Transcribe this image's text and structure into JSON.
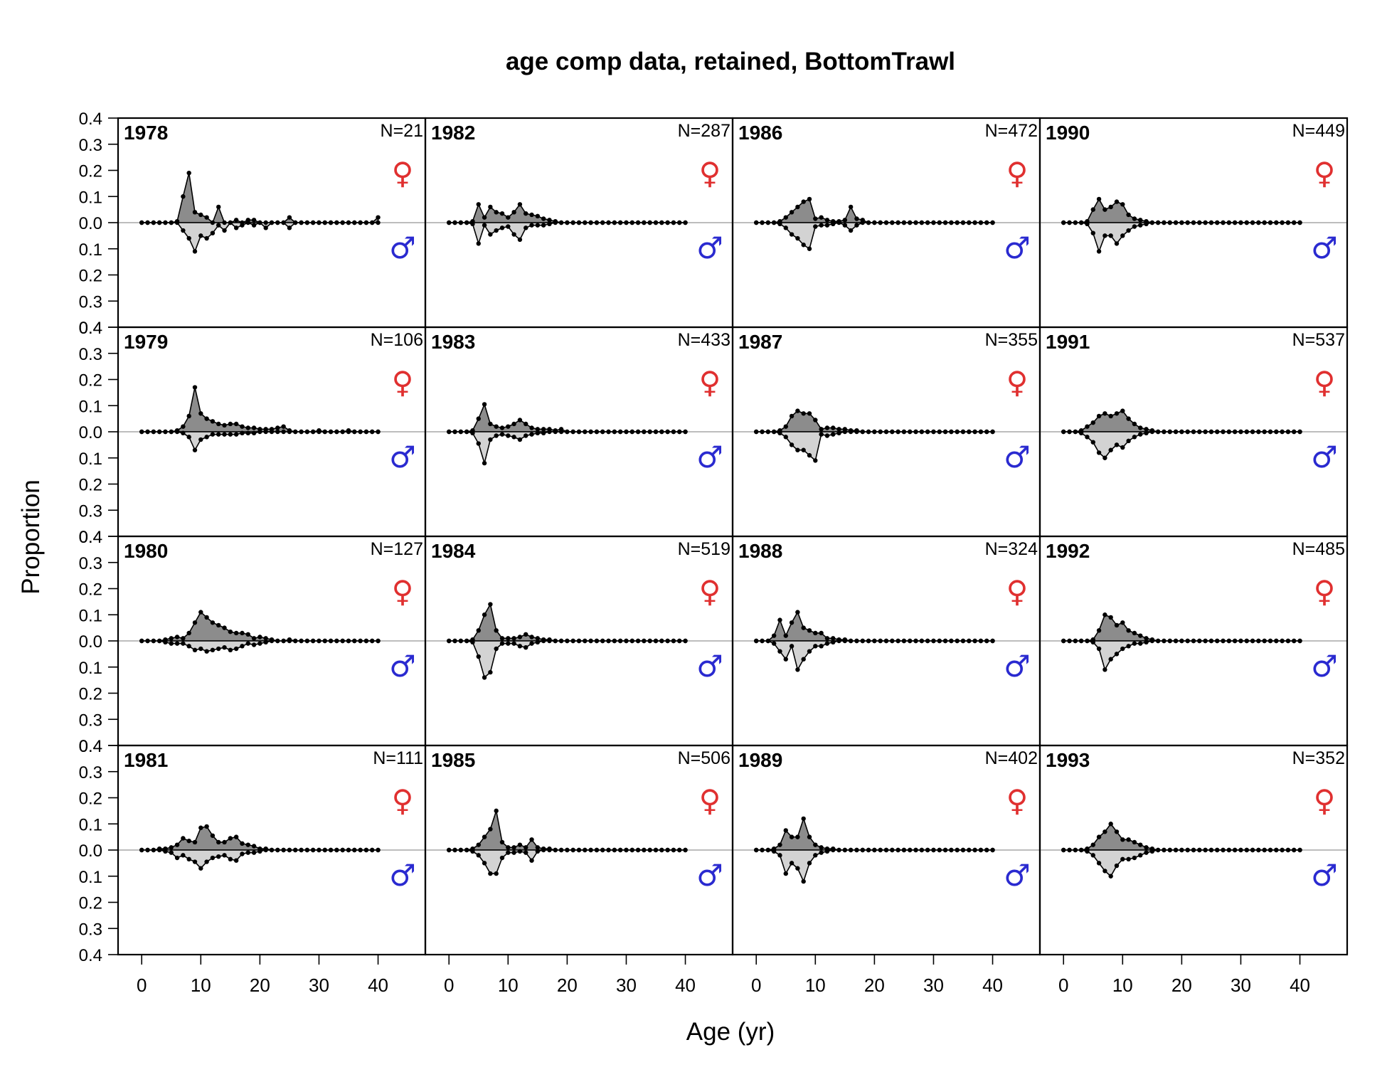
{
  "chart_data": {
    "type": "area",
    "title": "age comp data, retained, BottomTrawl",
    "xlabel": "Age (yr)",
    "ylabel": "Proportion",
    "xlim": [
      -4,
      48
    ],
    "ylim": [
      -0.4,
      0.4
    ],
    "x_ticks": [
      "0",
      "10",
      "20",
      "30",
      "40"
    ],
    "x_tick_values": [
      0,
      10,
      20,
      30,
      40
    ],
    "y_ticks": [
      "0.4",
      "0.3",
      "0.2",
      "0.1",
      "0.0",
      "0.1",
      "0.2",
      "0.3",
      "0.4"
    ],
    "y_tick_values": [
      0.4,
      0.3,
      0.2,
      0.1,
      0.0,
      -0.1,
      -0.2,
      -0.3,
      -0.4
    ],
    "female_symbol": "♀",
    "male_symbol": "♂",
    "colors": {
      "female_fill": "#8c8c8c",
      "male_fill": "#d3d3d3",
      "female_symbol": "#e03030",
      "male_symbol": "#2a2ad0",
      "zero_line": "#bdbdbd"
    },
    "grid": false,
    "ages": [
      0,
      40
    ],
    "panels": [
      {
        "year": "1978",
        "n": "N=21",
        "female": {
          "6": 0.005,
          "7": 0.1,
          "8": 0.19,
          "9": 0.04,
          "10": 0.03,
          "11": 0.02,
          "12": 0.0,
          "13": 0.06,
          "14": 0.0,
          "15": 0.0,
          "16": 0.01,
          "17": 0.0,
          "18": 0.01,
          "19": 0.01,
          "20": 0.0,
          "25": 0.02,
          "40": 0.02
        },
        "male": {
          "7": 0.03,
          "8": 0.06,
          "9": 0.11,
          "10": 0.05,
          "11": 0.06,
          "12": 0.04,
          "13": 0.01,
          "14": 0.03,
          "15": 0.0,
          "16": 0.02,
          "17": 0.01,
          "18": 0.0,
          "19": 0.01,
          "20": 0.0,
          "21": 0.02,
          "25": 0.02
        }
      },
      {
        "year": "1979",
        "n": "N=106",
        "female": {
          "6": 0.005,
          "7": 0.02,
          "8": 0.06,
          "9": 0.17,
          "10": 0.07,
          "11": 0.05,
          "12": 0.04,
          "13": 0.03,
          "14": 0.025,
          "15": 0.03,
          "16": 0.03,
          "17": 0.02,
          "18": 0.015,
          "19": 0.015,
          "20": 0.01,
          "21": 0.01,
          "22": 0.01,
          "23": 0.015,
          "24": 0.02,
          "25": 0.005,
          "30": 0.005,
          "35": 0.005
        },
        "male": {
          "7": 0.005,
          "8": 0.02,
          "9": 0.07,
          "10": 0.03,
          "11": 0.02,
          "12": 0.01,
          "13": 0.01,
          "14": 0.01,
          "15": 0.01,
          "16": 0.01,
          "17": 0.005,
          "18": 0.005,
          "19": 0.005
        }
      },
      {
        "year": "1980",
        "n": "N=127",
        "female": {
          "4": 0.005,
          "5": 0.01,
          "6": 0.015,
          "7": 0.01,
          "8": 0.03,
          "9": 0.07,
          "10": 0.11,
          "11": 0.09,
          "12": 0.07,
          "13": 0.06,
          "14": 0.05,
          "15": 0.035,
          "16": 0.03,
          "17": 0.03,
          "18": 0.025,
          "19": 0.01,
          "20": 0.015,
          "21": 0.01,
          "22": 0.005,
          "25": 0.005
        },
        "male": {
          "4": 0.005,
          "5": 0.01,
          "6": 0.01,
          "7": 0.01,
          "8": 0.02,
          "9": 0.035,
          "10": 0.03,
          "11": 0.04,
          "12": 0.035,
          "13": 0.03,
          "14": 0.025,
          "15": 0.035,
          "16": 0.03,
          "17": 0.02,
          "18": 0.01,
          "19": 0.015,
          "20": 0.01,
          "21": 0.005
        }
      },
      {
        "year": "1981",
        "n": "N=111",
        "female": {
          "3": 0.005,
          "4": 0.005,
          "5": 0.01,
          "6": 0.02,
          "7": 0.045,
          "8": 0.035,
          "9": 0.03,
          "10": 0.085,
          "11": 0.09,
          "12": 0.055,
          "13": 0.03,
          "14": 0.03,
          "15": 0.045,
          "16": 0.05,
          "17": 0.025,
          "18": 0.02,
          "19": 0.015,
          "20": 0.005,
          "21": 0.005
        },
        "male": {
          "4": 0.005,
          "5": 0.01,
          "6": 0.03,
          "7": 0.02,
          "8": 0.035,
          "9": 0.045,
          "10": 0.07,
          "11": 0.045,
          "12": 0.03,
          "13": 0.025,
          "14": 0.02,
          "15": 0.035,
          "16": 0.04,
          "17": 0.015,
          "18": 0.01,
          "19": 0.01,
          "20": 0.005
        }
      },
      {
        "year": "1982",
        "n": "N=287",
        "female": {
          "4": 0.005,
          "5": 0.07,
          "6": 0.02,
          "7": 0.06,
          "8": 0.04,
          "9": 0.035,
          "10": 0.02,
          "11": 0.04,
          "12": 0.07,
          "13": 0.035,
          "14": 0.03,
          "15": 0.025,
          "16": 0.015,
          "17": 0.01,
          "18": 0.005
        },
        "male": {
          "4": 0.005,
          "5": 0.08,
          "6": 0.01,
          "7": 0.045,
          "8": 0.03,
          "9": 0.02,
          "10": 0.015,
          "11": 0.045,
          "12": 0.065,
          "13": 0.02,
          "14": 0.01,
          "15": 0.01,
          "16": 0.01,
          "17": 0.005
        }
      },
      {
        "year": "1983",
        "n": "N=433",
        "female": {
          "4": 0.005,
          "5": 0.05,
          "6": 0.105,
          "7": 0.03,
          "8": 0.02,
          "9": 0.015,
          "10": 0.02,
          "11": 0.03,
          "12": 0.045,
          "13": 0.03,
          "14": 0.015,
          "15": 0.01,
          "16": 0.01,
          "17": 0.01,
          "18": 0.005,
          "19": 0.01
        },
        "male": {
          "4": 0.005,
          "5": 0.045,
          "6": 0.12,
          "7": 0.03,
          "8": 0.015,
          "9": 0.01,
          "10": 0.015,
          "11": 0.02,
          "12": 0.03,
          "13": 0.015,
          "14": 0.01,
          "15": 0.005,
          "16": 0.005
        }
      },
      {
        "year": "1984",
        "n": "N=519",
        "female": {
          "4": 0.005,
          "5": 0.04,
          "6": 0.1,
          "7": 0.14,
          "8": 0.04,
          "9": 0.01,
          "10": 0.01,
          "11": 0.01,
          "12": 0.015,
          "13": 0.025,
          "14": 0.015,
          "15": 0.01,
          "16": 0.005,
          "17": 0.005
        },
        "male": {
          "4": 0.005,
          "5": 0.06,
          "6": 0.14,
          "7": 0.12,
          "8": 0.03,
          "9": 0.01,
          "10": 0.01,
          "11": 0.01,
          "12": 0.02,
          "13": 0.025,
          "14": 0.01,
          "15": 0.005
        }
      },
      {
        "year": "1985",
        "n": "N=506",
        "female": {
          "4": 0.005,
          "5": 0.02,
          "6": 0.05,
          "7": 0.08,
          "8": 0.15,
          "9": 0.03,
          "10": 0.01,
          "11": 0.01,
          "12": 0.02,
          "13": 0.01,
          "14": 0.04,
          "15": 0.01,
          "16": 0.005,
          "17": 0.005
        },
        "male": {
          "4": 0.005,
          "5": 0.02,
          "6": 0.05,
          "7": 0.09,
          "8": 0.09,
          "9": 0.03,
          "10": 0.01,
          "11": 0.01,
          "12": 0.005,
          "13": 0.01,
          "14": 0.04,
          "15": 0.005
        }
      },
      {
        "year": "1986",
        "n": "N=472",
        "female": {
          "4": 0.005,
          "5": 0.02,
          "6": 0.04,
          "7": 0.06,
          "8": 0.08,
          "9": 0.09,
          "10": 0.015,
          "11": 0.02,
          "12": 0.01,
          "13": 0.005,
          "14": 0.005,
          "15": 0.01,
          "16": 0.06,
          "17": 0.015,
          "18": 0.01
        },
        "male": {
          "4": 0.005,
          "5": 0.02,
          "6": 0.045,
          "7": 0.06,
          "8": 0.085,
          "9": 0.1,
          "10": 0.015,
          "11": 0.01,
          "12": 0.01,
          "13": 0.005,
          "15": 0.01,
          "16": 0.03,
          "17": 0.01
        }
      },
      {
        "year": "1987",
        "n": "N=355",
        "female": {
          "4": 0.005,
          "5": 0.02,
          "6": 0.06,
          "7": 0.08,
          "8": 0.07,
          "9": 0.07,
          "10": 0.045,
          "11": 0.01,
          "12": 0.015,
          "13": 0.015,
          "14": 0.01,
          "15": 0.01,
          "16": 0.005,
          "17": 0.005
        },
        "male": {
          "4": 0.005,
          "5": 0.02,
          "6": 0.05,
          "7": 0.07,
          "8": 0.07,
          "9": 0.09,
          "10": 0.11,
          "11": 0.01,
          "12": 0.015,
          "13": 0.01,
          "14": 0.005
        }
      },
      {
        "year": "1988",
        "n": "N=324",
        "female": {
          "3": 0.02,
          "4": 0.08,
          "5": 0.02,
          "6": 0.07,
          "7": 0.11,
          "8": 0.05,
          "9": 0.04,
          "10": 0.03,
          "11": 0.03,
          "12": 0.01,
          "13": 0.01,
          "14": 0.005,
          "15": 0.005
        },
        "male": {
          "3": 0.01,
          "4": 0.04,
          "5": 0.07,
          "6": 0.02,
          "7": 0.11,
          "8": 0.07,
          "9": 0.04,
          "10": 0.02,
          "11": 0.02,
          "12": 0.01,
          "13": 0.005
        }
      },
      {
        "year": "1989",
        "n": "N=402",
        "female": {
          "3": 0.005,
          "4": 0.02,
          "5": 0.075,
          "6": 0.05,
          "7": 0.05,
          "8": 0.12,
          "9": 0.05,
          "10": 0.02,
          "11": 0.01,
          "12": 0.005,
          "13": 0.005
        },
        "male": {
          "3": 0.005,
          "4": 0.02,
          "5": 0.09,
          "6": 0.05,
          "7": 0.07,
          "8": 0.12,
          "9": 0.05,
          "10": 0.02,
          "11": 0.01,
          "12": 0.005
        }
      },
      {
        "year": "1990",
        "n": "N=449",
        "female": {
          "4": 0.005,
          "5": 0.05,
          "6": 0.09,
          "7": 0.05,
          "8": 0.06,
          "9": 0.08,
          "10": 0.07,
          "11": 0.03,
          "12": 0.015,
          "13": 0.01,
          "14": 0.005
        },
        "male": {
          "4": 0.005,
          "5": 0.04,
          "6": 0.11,
          "7": 0.05,
          "8": 0.05,
          "9": 0.08,
          "10": 0.05,
          "11": 0.03,
          "12": 0.015,
          "13": 0.01,
          "14": 0.005
        }
      },
      {
        "year": "1991",
        "n": "N=537",
        "female": {
          "3": 0.005,
          "4": 0.02,
          "5": 0.035,
          "6": 0.06,
          "7": 0.07,
          "8": 0.06,
          "9": 0.07,
          "10": 0.08,
          "11": 0.05,
          "12": 0.03,
          "13": 0.015,
          "14": 0.01,
          "15": 0.005
        },
        "male": {
          "3": 0.005,
          "4": 0.02,
          "5": 0.04,
          "6": 0.08,
          "7": 0.1,
          "8": 0.07,
          "9": 0.05,
          "10": 0.06,
          "11": 0.035,
          "12": 0.02,
          "13": 0.01,
          "14": 0.005
        }
      },
      {
        "year": "1992",
        "n": "N=485",
        "female": {
          "5": 0.005,
          "6": 0.04,
          "7": 0.1,
          "8": 0.09,
          "9": 0.06,
          "10": 0.07,
          "11": 0.04,
          "12": 0.03,
          "13": 0.02,
          "14": 0.01,
          "15": 0.005
        },
        "male": {
          "5": 0.005,
          "6": 0.03,
          "7": 0.11,
          "8": 0.07,
          "9": 0.05,
          "10": 0.03,
          "11": 0.02,
          "12": 0.01,
          "13": 0.01,
          "14": 0.005
        }
      },
      {
        "year": "1993",
        "n": "N=352",
        "female": {
          "4": 0.005,
          "5": 0.02,
          "6": 0.05,
          "7": 0.07,
          "8": 0.1,
          "9": 0.07,
          "10": 0.04,
          "11": 0.04,
          "12": 0.03,
          "13": 0.02,
          "14": 0.01,
          "15": 0.005
        },
        "male": {
          "4": 0.005,
          "5": 0.02,
          "6": 0.05,
          "7": 0.08,
          "8": 0.1,
          "9": 0.06,
          "10": 0.035,
          "11": 0.035,
          "12": 0.03,
          "13": 0.02,
          "14": 0.01,
          "15": 0.005
        }
      }
    ]
  }
}
